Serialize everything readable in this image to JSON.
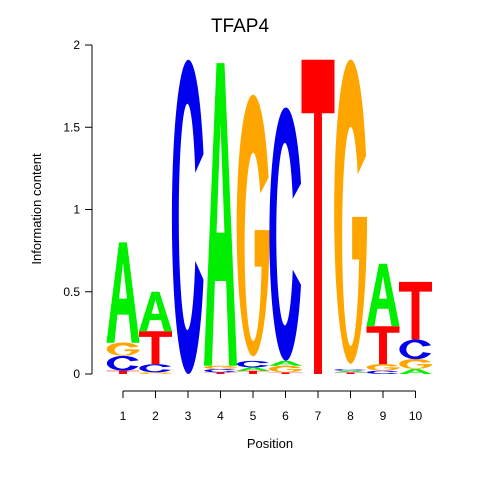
{
  "chart_data": {
    "type": "sequence-logo",
    "title": "TFAP4",
    "xlabel": "Position",
    "ylabel": "Information content",
    "ylim": [
      0,
      2
    ],
    "yticks": [
      "0",
      "0.5",
      "1",
      "1.5",
      "2"
    ],
    "xticks": [
      "1",
      "2",
      "3",
      "4",
      "5",
      "6",
      "7",
      "8",
      "9",
      "10"
    ],
    "colors": {
      "A": "#00ee00",
      "C": "#0000ee",
      "G": "#ffa500",
      "T": "#ff0000"
    },
    "positions": [
      {
        "position": "1",
        "letters": [
          {
            "base": "T",
            "height": 0.02
          },
          {
            "base": "C",
            "height": 0.09
          },
          {
            "base": "G",
            "height": 0.08
          },
          {
            "base": "A",
            "height": 0.61
          }
        ]
      },
      {
        "position": "2",
        "letters": [
          {
            "base": "G",
            "height": 0.01
          },
          {
            "base": "C",
            "height": 0.05
          },
          {
            "base": "T",
            "height": 0.2
          },
          {
            "base": "A",
            "height": 0.24
          }
        ]
      },
      {
        "position": "3",
        "letters": [
          {
            "base": "C",
            "height": 1.91
          }
        ]
      },
      {
        "position": "4",
        "letters": [
          {
            "base": "T",
            "height": 0.01
          },
          {
            "base": "C",
            "height": 0.02
          },
          {
            "base": "G",
            "height": 0.02
          },
          {
            "base": "A",
            "height": 1.84
          }
        ]
      },
      {
        "position": "5",
        "letters": [
          {
            "base": "T",
            "height": 0.02
          },
          {
            "base": "A",
            "height": 0.02
          },
          {
            "base": "C",
            "height": 0.04
          },
          {
            "base": "G",
            "height": 1.59
          }
        ]
      },
      {
        "position": "6",
        "letters": [
          {
            "base": "T",
            "height": 0.01
          },
          {
            "base": "G",
            "height": 0.04
          },
          {
            "base": "A",
            "height": 0.03
          },
          {
            "base": "C",
            "height": 1.54
          }
        ]
      },
      {
        "position": "7",
        "letters": [
          {
            "base": "T",
            "height": 1.91
          }
        ]
      },
      {
        "position": "8",
        "letters": [
          {
            "base": "T",
            "height": 0.01
          },
          {
            "base": "A",
            "height": 0.01
          },
          {
            "base": "C",
            "height": 0.01
          },
          {
            "base": "G",
            "height": 1.85
          }
        ]
      },
      {
        "position": "9",
        "letters": [
          {
            "base": "C",
            "height": 0.02
          },
          {
            "base": "G",
            "height": 0.04
          },
          {
            "base": "T",
            "height": 0.23
          },
          {
            "base": "A",
            "height": 0.38
          }
        ]
      },
      {
        "position": "10",
        "letters": [
          {
            "base": "A",
            "height": 0.03
          },
          {
            "base": "G",
            "height": 0.06
          },
          {
            "base": "C",
            "height": 0.12
          },
          {
            "base": "T",
            "height": 0.35
          }
        ]
      }
    ]
  }
}
